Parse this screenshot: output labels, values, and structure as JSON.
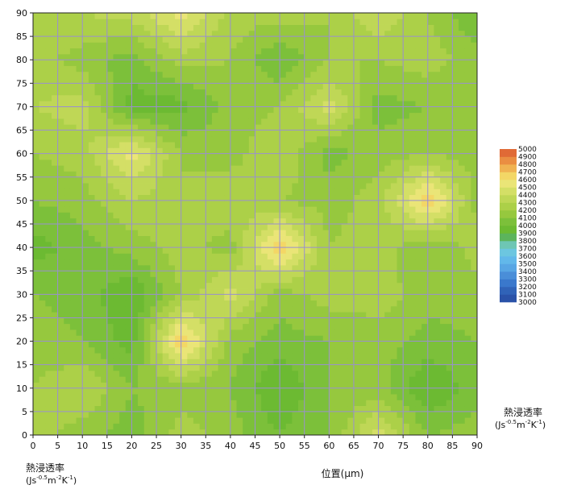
{
  "chart_data": {
    "type": "heatmap",
    "subtype": "filled-contour",
    "title": "",
    "xlabel": "位置(μm)",
    "ylabel": "",
    "xlim": [
      0,
      90
    ],
    "ylim": [
      0,
      90
    ],
    "x_ticks": [
      0,
      5,
      10,
      15,
      20,
      25,
      30,
      35,
      40,
      45,
      50,
      55,
      60,
      65,
      70,
      75,
      80,
      85,
      90
    ],
    "y_ticks": [
      0,
      5,
      10,
      15,
      20,
      25,
      30,
      35,
      40,
      45,
      50,
      55,
      60,
      65,
      70,
      75,
      80,
      85,
      90
    ],
    "grid": true,
    "x": [
      0,
      10,
      20,
      30,
      40,
      50,
      60,
      70,
      80,
      90
    ],
    "y": [
      0,
      10,
      20,
      30,
      40,
      50,
      60,
      70,
      80,
      90
    ],
    "z": [
      [
        4250,
        4150,
        4050,
        4250,
        4150,
        4000,
        4100,
        4450,
        4100,
        4150
      ],
      [
        4200,
        4300,
        4100,
        4150,
        4100,
        3900,
        4100,
        4150,
        3900,
        4050
      ],
      [
        4150,
        4100,
        3950,
        4700,
        4150,
        4050,
        4100,
        4150,
        4050,
        4100
      ],
      [
        4100,
        4050,
        3900,
        4200,
        4450,
        4150,
        4250,
        4250,
        4150,
        4150
      ],
      [
        3950,
        4050,
        4150,
        4250,
        4150,
        4700,
        4200,
        4250,
        4100,
        4250
      ],
      [
        4100,
        4150,
        4300,
        4200,
        4300,
        4200,
        4150,
        4250,
        4700,
        4150
      ],
      [
        4200,
        4250,
        4550,
        4200,
        4150,
        4300,
        4050,
        4150,
        4200,
        4150
      ],
      [
        4300,
        4350,
        3950,
        3950,
        4150,
        4200,
        4450,
        4050,
        4100,
        4100
      ],
      [
        4250,
        4150,
        4050,
        4250,
        4200,
        4000,
        4200,
        4200,
        4250,
        4150
      ],
      [
        4250,
        4300,
        4350,
        4550,
        4250,
        4250,
        4200,
        4400,
        4200,
        4000
      ]
    ],
    "colorbar": {
      "levels": [
        3000,
        3100,
        3200,
        3300,
        3400,
        3500,
        3600,
        3700,
        3800,
        3900,
        4000,
        4100,
        4200,
        4300,
        4400,
        4500,
        4600,
        4700,
        4800,
        4900,
        5000
      ],
      "colors": [
        "#2a52a8",
        "#3063b8",
        "#3a78cc",
        "#4a8ed8",
        "#58a6e4",
        "#62b8ea",
        "#6cc6e0",
        "#6ec6b4",
        "#5cb45c",
        "#6cba32",
        "#7cc03a",
        "#96c83e",
        "#acd048",
        "#bfd756",
        "#d4df66",
        "#eae577",
        "#f3d766",
        "#f0b352",
        "#ea8e42",
        "#e06a36"
      ],
      "title": "熱浸透率",
      "unit": "(Js-0.5m-2K-1)"
    },
    "units_label": {
      "title": "熱浸透率",
      "unit": "(Js-0.5m-2K-1)"
    }
  }
}
